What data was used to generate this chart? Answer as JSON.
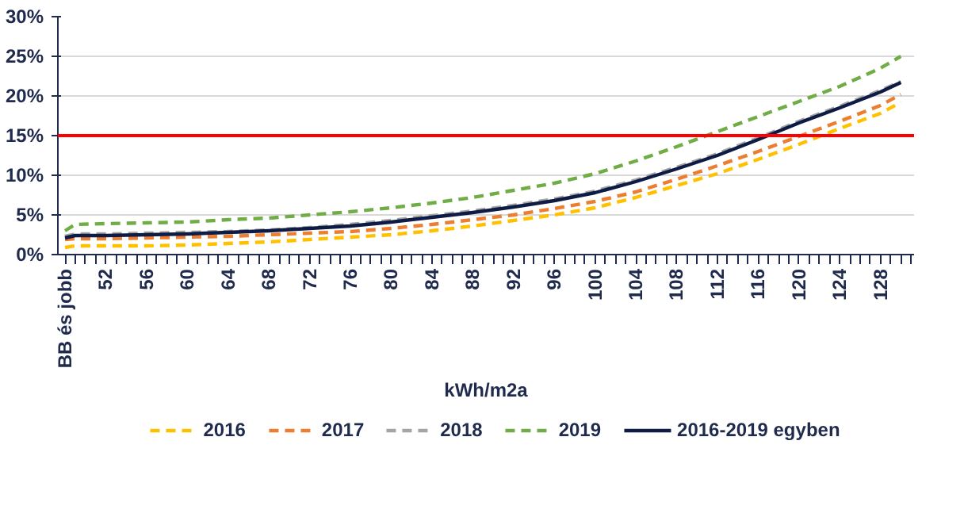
{
  "chart_data": {
    "type": "line",
    "xlabel": "kWh/m2a",
    "x": [
      48,
      49,
      52,
      56,
      60,
      64,
      68,
      72,
      76,
      80,
      84,
      88,
      92,
      96,
      100,
      104,
      108,
      112,
      116,
      120,
      124,
      128,
      130
    ],
    "xlim": [
      47.3,
      131.3
    ],
    "xticks": [
      {
        "value": 48,
        "label": "BB és jobb"
      },
      52,
      56,
      60,
      64,
      68,
      72,
      76,
      80,
      84,
      88,
      92,
      96,
      100,
      104,
      108,
      112,
      116,
      120,
      124,
      128
    ],
    "ylim": [
      0,
      30
    ],
    "yticks": [
      {
        "value": 0,
        "label": "0%"
      },
      {
        "value": 5,
        "label": "5%"
      },
      {
        "value": 10,
        "label": "10%"
      },
      {
        "value": 15,
        "label": "15%"
      },
      {
        "value": 20,
        "label": "20%"
      },
      {
        "value": 25,
        "label": "25%"
      },
      {
        "value": 30,
        "label": "30%"
      }
    ],
    "grid": "y",
    "legend": "bottom",
    "marker": "none",
    "ref_lines": [
      {
        "axis": "y",
        "value": 15,
        "color": "#ff0000"
      }
    ],
    "series": [
      {
        "name": "2016",
        "color": "#ffc000",
        "line_style": "dashed",
        "values": [
          0.9,
          1.1,
          1.1,
          1.1,
          1.2,
          1.4,
          1.6,
          1.9,
          2.2,
          2.5,
          3.0,
          3.6,
          4.3,
          5.0,
          5.9,
          7.2,
          8.7,
          10.2,
          12.0,
          13.9,
          15.9,
          17.8,
          19.2
        ]
      },
      {
        "name": "2017",
        "color": "#ed7d31",
        "line_style": "dashed",
        "values": [
          1.9,
          2.0,
          2.0,
          2.1,
          2.2,
          2.3,
          2.5,
          2.7,
          2.9,
          3.3,
          3.8,
          4.4,
          5.0,
          5.8,
          6.7,
          7.9,
          9.5,
          11.2,
          13.0,
          14.9,
          16.8,
          18.8,
          20.2
        ]
      },
      {
        "name": "2018",
        "color": "#a5a5a5",
        "line_style": "dashed",
        "values": [
          2.3,
          2.6,
          2.6,
          2.7,
          2.8,
          2.9,
          3.1,
          3.4,
          3.8,
          4.3,
          4.9,
          5.5,
          6.2,
          7.0,
          8.0,
          9.4,
          11.0,
          12.7,
          14.7,
          16.8,
          18.7,
          20.7,
          21.8
        ]
      },
      {
        "name": "2019",
        "color": "#70ad47",
        "line_style": "dashed",
        "values": [
          3.0,
          3.8,
          3.9,
          4.0,
          4.1,
          4.4,
          4.6,
          5.0,
          5.4,
          5.9,
          6.5,
          7.2,
          8.1,
          9.0,
          10.2,
          11.8,
          13.6,
          15.5,
          17.4,
          19.3,
          21.2,
          23.5,
          25.0
        ]
      },
      {
        "name": "2016-2019 egyben",
        "color": "#0d1b45",
        "line_style": "solid",
        "values": [
          2.1,
          2.4,
          2.4,
          2.5,
          2.6,
          2.8,
          3.0,
          3.3,
          3.6,
          4.1,
          4.7,
          5.3,
          6.0,
          6.8,
          7.8,
          9.2,
          10.8,
          12.5,
          14.5,
          16.6,
          18.5,
          20.5,
          21.7
        ]
      }
    ]
  }
}
